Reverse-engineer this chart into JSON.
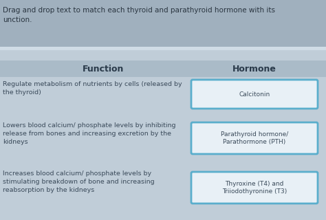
{
  "bg_color_top": "#a0b0be",
  "bg_color_main": "#c0cdd8",
  "bg_color_separator": "#b0bfcc",
  "instruction_text": "Drag and drop text to match each thyroid and parathyroid hormone with its\nunction.",
  "col_function_header": "Function",
  "col_hormone_header": "Hormone",
  "functions": [
    "Regulate metabolism of nutrients by cells (released by\nthe thyroid)",
    "Lowers blood calcium/ phosphate levels by inhibiting\nrelease from bones and increasing excretion by the\nkidneys",
    "Increases blood calcium/ phosphate levels by\nstimulating breakdown of bone and increasing\nreabsorption by the kidneys"
  ],
  "hormones": [
    "Calcitonin",
    "Parathyroid hormone/\nParathormone (PTH)",
    "Thyroxine (T4) and\nTriiodothyronine (T3)"
  ],
  "box_face_color": "#e8f0f6",
  "box_edge_color": "#5aaecc",
  "text_color_dark": "#3a4a5a",
  "header_text_color": "#2a3a4a",
  "instruction_color": "#2a3540"
}
